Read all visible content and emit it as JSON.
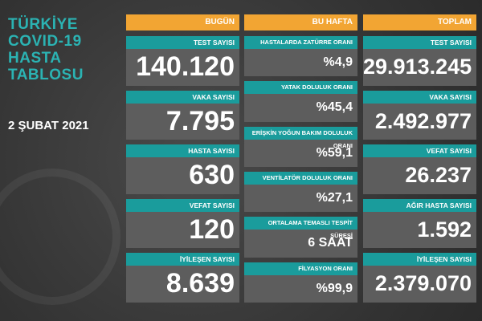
{
  "title_lines": [
    "TÜRKİYE",
    "COVID-19",
    "HASTA",
    "TABLOSU"
  ],
  "date": "2 ŞUBAT 2021",
  "columns": [
    {
      "header": "BUGÜN",
      "cards": [
        {
          "label": "TEST SAYISI",
          "value": "140.120"
        },
        {
          "label": "VAKA SAYISI",
          "value": "7.795"
        },
        {
          "label": "HASTA SAYISI",
          "value": "630"
        },
        {
          "label": "VEFAT SAYISI",
          "value": "120"
        },
        {
          "label": "İYİLEŞEN SAYISI",
          "value": "8.639"
        }
      ]
    },
    {
      "header": "BU HAFTA",
      "cards": [
        {
          "label": "HASTALARDA ZATÜRRE ORANI",
          "value": "%4,9"
        },
        {
          "label": "YATAK DOLULUK ORANI",
          "value": "%45,4"
        },
        {
          "label": "ERİŞKİN YOĞUN BAKIM DOLULUK ORANI",
          "value": "%59,1"
        },
        {
          "label": "VENTİLATÖR DOLULUK ORANI",
          "value": "%27,1"
        },
        {
          "label": "ORTALAMA TEMASLI TESPİT SÜRESİ",
          "value": "6 SAAT"
        },
        {
          "label": "FİLYASYON ORANI",
          "value": "%99,9"
        }
      ]
    },
    {
      "header": "TOPLAM",
      "cards": [
        {
          "label": "TEST SAYISI",
          "value": "29.913.245"
        },
        {
          "label": "VAKA SAYISI",
          "value": "2.492.977"
        },
        {
          "label": "VEFAT SAYISI",
          "value": "26.237"
        },
        {
          "label": "AĞIR HASTA SAYISI",
          "value": "1.592"
        },
        {
          "label": "İYİLEŞEN SAYISI",
          "value": "2.379.070"
        }
      ]
    }
  ]
}
